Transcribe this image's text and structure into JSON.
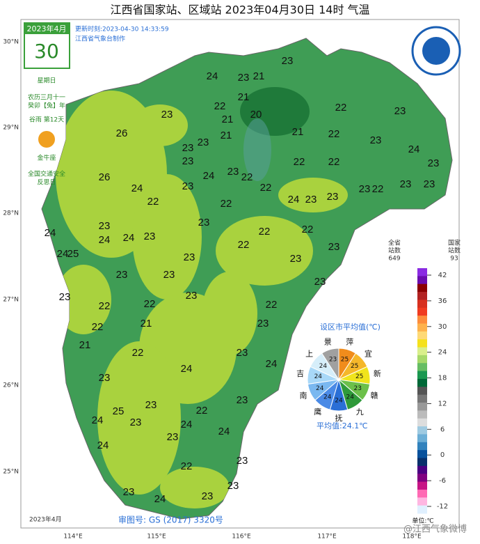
{
  "header": {
    "title": "江西省国家站、区域站   2023年04月30日 14时   气温"
  },
  "calendar": {
    "month": "2023年4月",
    "day": "30",
    "weekday": "星期日",
    "lunar": "农历三月十一",
    "ganzhi": "癸卯【兔】年",
    "term": "谷雨 第12天",
    "zodiac": "金牛座",
    "event1": "全国交通安全",
    "event2": "反思日"
  },
  "update": {
    "time": "更新时刻:2023-04-30 14:33:59",
    "producer": "江西省气象台制作"
  },
  "axes": {
    "lat": [
      "30°N",
      "29°N",
      "28°N",
      "27°N",
      "26°N",
      "25°N"
    ],
    "lon": [
      "114°E",
      "115°E",
      "116°E",
      "117°E",
      "118°E"
    ]
  },
  "stations": [
    24,
    23,
    21,
    23,
    21,
    20,
    22,
    22,
    23,
    21,
    21,
    26,
    23,
    22,
    23,
    24,
    23,
    23,
    23,
    24,
    21,
    22,
    23,
    22,
    22,
    22,
    23,
    26,
    24,
    23,
    22,
    22,
    24,
    23,
    23,
    23,
    22,
    23,
    23,
    24,
    23,
    24,
    23,
    23,
    22,
    22,
    23,
    24,
    25,
    24,
    23,
    22,
    23,
    23,
    23,
    23,
    23,
    22,
    22,
    22,
    23,
    22,
    21,
    23,
    21,
    22,
    23,
    24,
    24,
    23,
    23,
    23,
    25,
    23,
    24,
    24,
    22,
    24,
    24,
    23,
    22,
    23,
    23,
    24,
    23,
    23
  ],
  "counts": {
    "all_label1": "全省",
    "all_label2": "站数",
    "all": 649,
    "national_label1": "国家",
    "national_label2": "站数",
    "national": 93
  },
  "legend": {
    "ticks": [
      42,
      36,
      30,
      24,
      18,
      12,
      6,
      0,
      -6,
      -12
    ],
    "unit": "单位:℃"
  },
  "city_averages": {
    "title": "设区市平均值(℃)",
    "cities": [
      {
        "name": "萍",
        "value": 25,
        "color": "#f08c1c"
      },
      {
        "name": "宜",
        "value": 25,
        "color": "#f5b72a"
      },
      {
        "name": "新",
        "value": 25,
        "color": "#f0e41c"
      },
      {
        "name": "赣",
        "value": 23,
        "color": "#6cc04a"
      },
      {
        "name": "九",
        "value": 24,
        "color": "#2f9a3a"
      },
      {
        "name": "抚",
        "value": 24,
        "color": "#2a6fd6"
      },
      {
        "name": "鹰",
        "value": 24,
        "color": "#4a8ae6"
      },
      {
        "name": "南",
        "value": 24,
        "color": "#7ab8f0"
      },
      {
        "name": "吉",
        "value": 24,
        "color": "#a8d8f8"
      },
      {
        "name": "上",
        "value": 24,
        "color": "#d6eefa"
      },
      {
        "name": "景",
        "value": 23,
        "color": "#a0a0a0"
      }
    ],
    "average": "平均值:24.1℃"
  },
  "footer": {
    "approval": "审图号: GS (2017) 3320号",
    "watermark": "@江西气象微博"
  }
}
